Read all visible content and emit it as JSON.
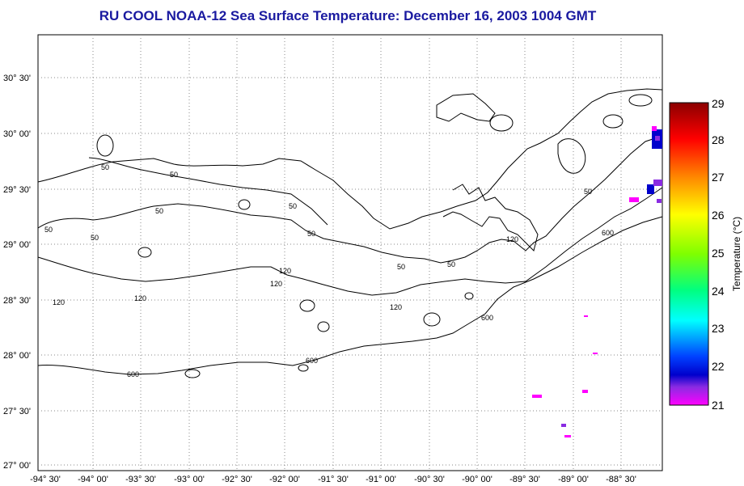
{
  "title": "RU COOL  NOAA-12  Sea Surface Temperature:  December 16, 2003 1004 GMT",
  "map": {
    "lat_labels": [
      "30° 30'",
      "30° 00'",
      "29° 30'",
      "29° 00'",
      "28° 30'",
      "28° 00'",
      "27° 30'",
      "27° 00'"
    ],
    "lon_labels": [
      "-94° 30'",
      "-94° 00'",
      "-93° 30'",
      "-93° 00'",
      "-92° 30'",
      "-92° 00'",
      "-91° 30'",
      "-91° 00'",
      "-90° 30'",
      "-90° 00'",
      "-89° 30'",
      "-89° 00'",
      "-88° 30'"
    ],
    "contour_labels": [
      "50",
      "50",
      "50",
      "50",
      "50",
      "50",
      "50",
      "50",
      "50",
      "50",
      "120",
      "120",
      "120",
      "120",
      "120",
      "120",
      "600",
      "600",
      "600",
      "600"
    ],
    "grid": "dotted"
  },
  "colorbar": {
    "title": "Temperature (°C)",
    "min": 21,
    "max": 29,
    "ticks": [
      "29",
      "28",
      "27",
      "26",
      "25",
      "24",
      "23",
      "22",
      "21"
    ],
    "colors": [
      "#8b0000",
      "#ff0000",
      "#ff8c00",
      "#ffff00",
      "#7fff00",
      "#00ff80",
      "#00ffff",
      "#0040ff",
      "#0000cc",
      "#ff00ff"
    ]
  }
}
